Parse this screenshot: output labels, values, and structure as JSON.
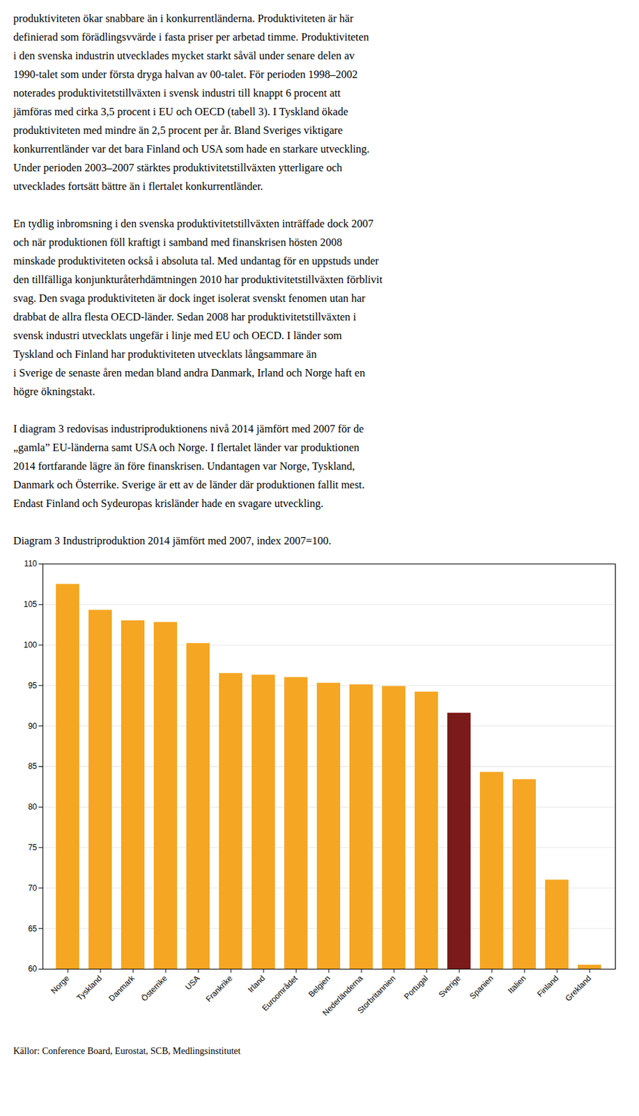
{
  "paragraphs": [
    [
      "produktiviteten ökar snabbare än i konkurrentländerna. Produktiviteten är här",
      "definierad som förädlingsvvärde i fasta priser per arbetad timme. Produktiviteten",
      "i den svenska industrin utvecklades mycket starkt såväl under senare delen av",
      "1990-talet som under första dryga halvan av 00-talet. För perioden 1998–2002",
      "noterades produktivitetstillväxten i svensk industri till knappt 6 procent att",
      "jämföras med cirka 3,5 procent i EU och OECD (tabell 3). I Tyskland ökade",
      "produktiviteten med mindre än 2,5 procent per år. Bland Sveriges viktigare",
      "konkurrentländer var det bara Finland och USA som hade en starkare utveckling.",
      "Under perioden 2003–2007 stärktes produktivitetstillväxten ytterligare och",
      "utvecklades fortsätt bättre än i flertalet konkurrentländer."
    ],
    [
      "En tydlig inbromsning i den svenska produktivitetstillväxten inträffade dock 2007",
      "och när produktionen föll kraftigt i samband med finanskrisen hösten 2008",
      "minskade produktiviteten också i absoluta tal. Med undantag för en uppstuds under",
      "den tillfälliga konjunkturåterhdämtningen 2010 har produktivitetstillväxten förblivit",
      "svag. Den svaga produktiviteten är dock inget isolerat svenskt fenomen utan har",
      "drabbat de allra flesta OECD-länder. Sedan 2008 har produktivitetstillväxten i",
      "svensk industri utvecklats ungefär i linje med EU och OECD. I länder som",
      "Tyskland och Finland har produktiviteten utvecklats långsammare än",
      "i Sverige de senaste åren medan bland andra Danmark, Irland och Norge haft en",
      "högre ökningstakt."
    ],
    [
      "I diagram 3 redovisas industriproduktionens nivå 2014 jämfört med 2007 för de",
      "„gamla” EU-länderna samt USA och Norge. I flertalet länder var produktionen",
      "2014 fortfarande lägre än före finanskrisen. Undantagen var Norge, Tyskland,",
      "Danmark och Österrike. Sverige är ett av de länder där produktionen fallit mest.",
      "Endast Finland och Sydeuropas krisländer hade en svagare utveckling."
    ]
  ],
  "chart_data": {
    "type": "bar",
    "title": "Diagram 3 Industriproduktion 2014 jämfört med 2007, index 2007=100.",
    "caption": "Källor: Conference Board, Eurostat, SCB, Medlingsinstitutet",
    "categories": [
      "Norge",
      "Tyskland",
      "Danmark",
      "Österrike",
      "USA",
      "Frankrike",
      "Irland",
      "Euroområdet",
      "Belgien",
      "Nederländerna",
      "Storbritannien",
      "Portugal",
      "Sverige",
      "Spanien",
      "Italien",
      "Finland",
      "Grekland"
    ],
    "values": [
      107.5,
      104.3,
      103.0,
      102.8,
      100.2,
      96.5,
      96.3,
      96.0,
      95.3,
      95.1,
      94.9,
      94.2,
      91.6,
      84.3,
      83.4,
      71.0,
      60.5
    ],
    "colors": [
      "#F5A623",
      "#F5A623",
      "#F5A623",
      "#F5A623",
      "#F5A623",
      "#F5A623",
      "#F5A623",
      "#F5A623",
      "#F5A623",
      "#F5A623",
      "#F5A623",
      "#F5A623",
      "#7B1A1A",
      "#F5A623",
      "#F5A623",
      "#F5A623",
      "#F5A623"
    ],
    "ylim": [
      60,
      110
    ],
    "yticks": [
      60,
      65,
      70,
      75,
      80,
      85,
      90,
      95,
      100,
      105,
      110
    ],
    "grid": true
  }
}
